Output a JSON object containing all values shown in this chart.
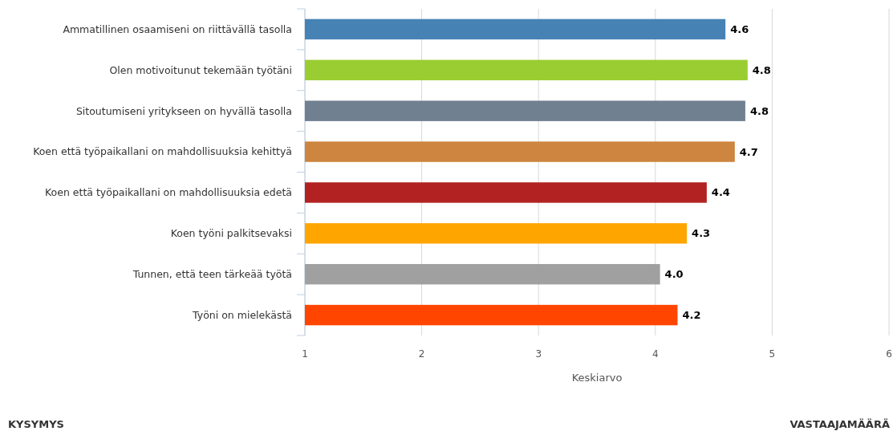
{
  "chart_data": {
    "type": "bar",
    "orientation": "horizontal",
    "xlabel": "Keskiarvo",
    "categories": [
      "Ammatillinen osaamiseni on riittävällä tasolla",
      "Olen motivoitunut tekemään työtäni",
      "Sitoutumiseni yritykseen on hyvällä tasolla",
      "Koen että työpaikallani on mahdollisuuksia kehittyä",
      "Koen että työpaikallani on mahdollisuuksia edetä",
      "Koen työni palkitsevaksi",
      "Tunnen, että teen tärkeää työtä",
      "Työni on mielekästä"
    ],
    "values": [
      4.6,
      4.79,
      4.77,
      4.68,
      4.44,
      4.27,
      4.04,
      4.19
    ],
    "value_labels": [
      "4.6",
      "4.8",
      "4.8",
      "4.7",
      "4.4",
      "4.3",
      "4.0",
      "4.2"
    ],
    "colors": [
      "#4682b4",
      "#9acd32",
      "#708090",
      "#cd853f",
      "#b22222",
      "#ffa500",
      "#a0a0a0",
      "#ff4500"
    ],
    "xlim": [
      1,
      6
    ],
    "xticks": [
      1,
      2,
      3,
      4,
      5,
      6
    ],
    "grid": "x",
    "annotations": [
      "KYSYMYS",
      "VASTAAJAMÄÄRÄ"
    ]
  }
}
